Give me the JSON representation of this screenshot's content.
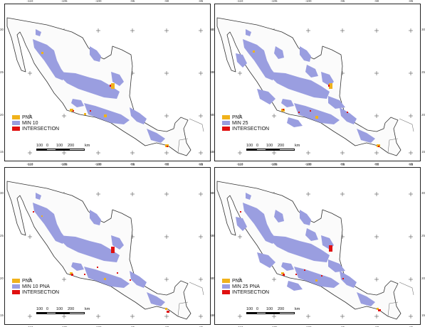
{
  "colors": {
    "pna": "#f0b21b",
    "min": "#9a9ee0",
    "intersection": "#e01010"
  },
  "ticks": {
    "top": [
      "-110",
      "-105",
      "-100",
      "-95",
      "-90",
      "-85"
    ],
    "left": [
      "30",
      "25",
      "20",
      "15"
    ],
    "right": [
      "30",
      "25",
      "20",
      "15"
    ]
  },
  "scale": {
    "labels": [
      "100",
      "0",
      "100",
      "200",
      "km"
    ]
  },
  "panels": [
    {
      "id": "min10",
      "legend": {
        "pna": "PNA",
        "min": "MIN 10",
        "intersection": "INTERSECTION"
      }
    },
    {
      "id": "min25",
      "legend": {
        "pna": "PNA",
        "min": "MIN 25",
        "intersection": "INTERSECTION"
      }
    },
    {
      "id": "min10pna",
      "legend": {
        "pna": "PNA",
        "min": "MIN 10 PNA",
        "intersection": "INTERSECTION"
      }
    },
    {
      "id": "min25pna",
      "legend": {
        "pna": "PNA",
        "min": "MIN 25 PNA",
        "intersection": "INTERSECTION"
      }
    }
  ]
}
